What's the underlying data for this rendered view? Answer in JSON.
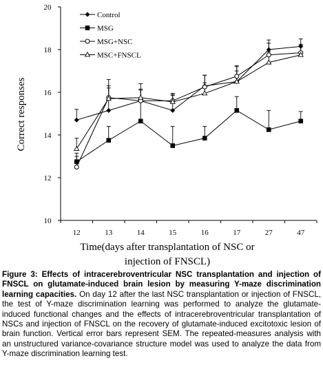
{
  "chart_data": {
    "type": "line",
    "categories": [
      "12",
      "13",
      "14",
      "15",
      "16",
      "17",
      "27",
      "47"
    ],
    "xlabel": "Time(days after transplantation of NSC or injection of FNSCL)",
    "xlabel_lines": [
      "Time(days after transplantation of NSC or",
      "injection of FNSCL)"
    ],
    "ylabel": "Correct responses",
    "ylim": [
      10,
      20
    ],
    "yticks": [
      10,
      12,
      14,
      16,
      18,
      20
    ],
    "grid": false,
    "legend_position": "top-left",
    "series": [
      {
        "name": "Control",
        "marker": "filled-diamond",
        "values": [
          14.7,
          15.15,
          15.6,
          15.15,
          16.3,
          16.5,
          18.0,
          18.15
        ],
        "errors": [
          0.5,
          1.45,
          0.8,
          0.7,
          0.5,
          0.7,
          0.45,
          0.35
        ]
      },
      {
        "name": "MSG",
        "marker": "filled-square",
        "values": [
          12.75,
          13.75,
          14.65,
          13.5,
          13.85,
          15.15,
          14.25,
          14.65
        ],
        "errors": [
          0.4,
          0.65,
          0.95,
          0.9,
          0.55,
          0.65,
          0.9,
          0.45
        ]
      },
      {
        "name": "MSG+NSC",
        "marker": "open-circle",
        "values": [
          12.5,
          15.75,
          15.6,
          15.6,
          16.25,
          16.75,
          17.75,
          17.85
        ],
        "errors": [
          0.5,
          0.55,
          0.5,
          0.3,
          0.55,
          0.5,
          0.55,
          0.4
        ]
      },
      {
        "name": "MSC+FNSCL",
        "marker": "open-triangle",
        "values": [
          13.35,
          15.7,
          15.75,
          15.55,
          15.95,
          16.5,
          17.4,
          17.75
        ],
        "errors": [
          0.5,
          0.5,
          0.4,
          0.4,
          0.5,
          0.5,
          0.5,
          0.45
        ]
      }
    ]
  },
  "caption": {
    "label": "Figure 3:",
    "title": "Effects of intracerebroventricular NSC transplantation and injection of FNSCL on glutamate-induced brain lesion by measuring Y-maze discrimination learning capacities.",
    "body": "On day 12 after the last NSC transplantation or injection of FNSCL, the test of Y-maze discrimination learning was performed to analyze the glutamate-induced functional changes and the effects of intracerebroventricular transplantation of NSCs and injection of FNSCL on the recovery of glutamate-induced excitotoxic lesion of brain function. Vertical error bars represent SEM. The repeated-measures analysis with an unstructured variance-covariance structure model was used to analyze the data from Y-maze discrimination learning test."
  }
}
